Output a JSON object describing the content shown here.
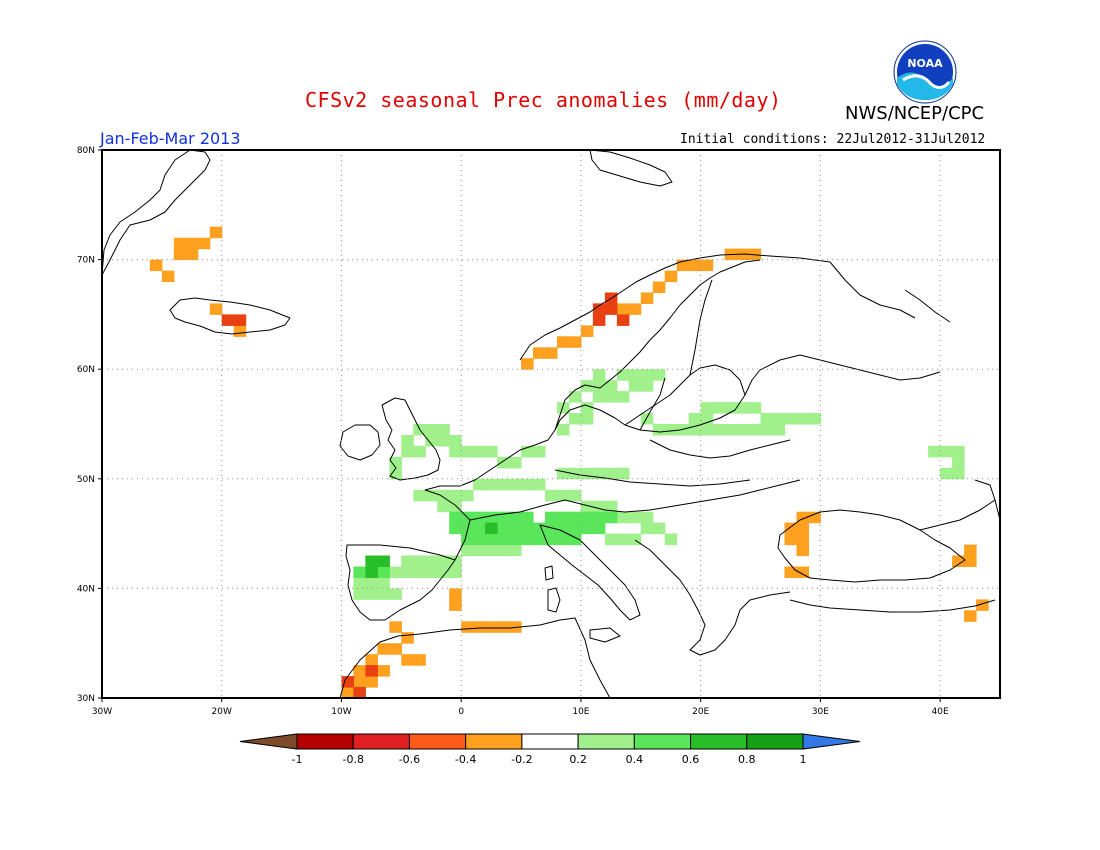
{
  "header": {
    "title": "CFSv2 seasonal Prec anomalies (mm/day)",
    "agency": "NWS/NCEP/CPC",
    "period": "Jan-Feb-Mar 2013",
    "initial_conditions": "Initial conditions: 22Jul2012-31Jul2012",
    "logo_text": "NOAA"
  },
  "map": {
    "lon_range": [
      -30,
      45
    ],
    "lat_range": [
      30,
      80
    ],
    "lon_ticks": [
      "30W",
      "20W",
      "10W",
      "0",
      "10E",
      "20E",
      "30E",
      "40E"
    ],
    "lat_ticks": [
      "30N",
      "40N",
      "50N",
      "60N",
      "70N",
      "80N"
    ],
    "grid": "dotted",
    "land_outline_color": "#000000"
  },
  "anomalies": {
    "units": "mm/day",
    "cell_size_deg": 1,
    "dry_moderate": [
      [
        -24,
        70
      ],
      [
        -23,
        70
      ],
      [
        -24,
        71
      ],
      [
        -23,
        71
      ],
      [
        -22,
        71
      ],
      [
        -21,
        72
      ],
      [
        -26,
        69
      ],
      [
        -25,
        68
      ],
      [
        -19,
        63
      ],
      [
        -21,
        65
      ],
      [
        -10,
        30
      ],
      [
        -9,
        31
      ],
      [
        -8,
        31
      ],
      [
        -7,
        32
      ],
      [
        -8,
        33
      ],
      [
        -7,
        34
      ],
      [
        -6,
        34
      ],
      [
        -5,
        33
      ],
      [
        -4,
        33
      ],
      [
        -5,
        35
      ],
      [
        -6,
        36
      ],
      [
        -9,
        32
      ],
      [
        1,
        36
      ],
      [
        0,
        36
      ],
      [
        2,
        36
      ],
      [
        3,
        36
      ],
      [
        4,
        36
      ],
      [
        -1,
        38
      ],
      [
        -1,
        39
      ],
      [
        29,
        46
      ],
      [
        28,
        46
      ],
      [
        28,
        45
      ],
      [
        27,
        44
      ],
      [
        27,
        45
      ],
      [
        28,
        44
      ],
      [
        28,
        43
      ],
      [
        27,
        41
      ],
      [
        28,
        41
      ],
      [
        41,
        42
      ],
      [
        42,
        42
      ],
      [
        42,
        43
      ],
      [
        42,
        37
      ],
      [
        43,
        38
      ],
      [
        5,
        60
      ],
      [
        6,
        61
      ],
      [
        7,
        61
      ],
      [
        8,
        62
      ],
      [
        9,
        62
      ],
      [
        10,
        63
      ],
      [
        13,
        65
      ],
      [
        14,
        65
      ],
      [
        15,
        66
      ],
      [
        16,
        67
      ],
      [
        17,
        68
      ],
      [
        18,
        69
      ],
      [
        19,
        69
      ],
      [
        20,
        69
      ],
      [
        22,
        70
      ],
      [
        23,
        70
      ],
      [
        24,
        70
      ]
    ],
    "dry_strong": [
      [
        -20,
        64
      ],
      [
        -19,
        64
      ],
      [
        -10,
        31
      ],
      [
        -9,
        30
      ],
      [
        -8,
        32
      ],
      [
        11,
        64
      ],
      [
        12,
        65
      ],
      [
        13,
        64
      ],
      [
        12,
        66
      ],
      [
        11,
        65
      ]
    ],
    "wet_weak": [
      [
        -6,
        51
      ],
      [
        -5,
        52
      ],
      [
        -4,
        52
      ],
      [
        -3,
        53
      ],
      [
        -2,
        53
      ],
      [
        -1,
        53
      ],
      [
        -2,
        54
      ],
      [
        -3,
        54
      ],
      [
        -4,
        54
      ],
      [
        -1,
        52
      ],
      [
        0,
        52
      ],
      [
        1,
        52
      ],
      [
        2,
        52
      ],
      [
        -5,
        53
      ],
      [
        -6,
        50
      ],
      [
        -4,
        48
      ],
      [
        -3,
        48
      ],
      [
        -2,
        48
      ],
      [
        -1,
        48
      ],
      [
        0,
        48
      ],
      [
        1,
        49
      ],
      [
        2,
        49
      ],
      [
        3,
        49
      ],
      [
        4,
        49
      ],
      [
        5,
        49
      ],
      [
        6,
        49
      ],
      [
        7,
        48
      ],
      [
        8,
        48
      ],
      [
        9,
        48
      ],
      [
        -2,
        47
      ],
      [
        -1,
        47
      ],
      [
        10,
        47
      ],
      [
        11,
        47
      ],
      [
        12,
        47
      ],
      [
        13,
        46
      ],
      [
        14,
        46
      ],
      [
        15,
        46
      ],
      [
        15,
        45
      ],
      [
        16,
        45
      ],
      [
        17,
        44
      ],
      [
        12,
        44
      ],
      [
        13,
        44
      ],
      [
        14,
        44
      ],
      [
        -8,
        42
      ],
      [
        -7,
        42
      ],
      [
        -6,
        41
      ],
      [
        -5,
        41
      ],
      [
        -4,
        41
      ],
      [
        -3,
        41
      ],
      [
        -2,
        41
      ],
      [
        -1,
        41
      ],
      [
        -9,
        40
      ],
      [
        -8,
        40
      ],
      [
        -7,
        40
      ],
      [
        -6,
        39
      ],
      [
        -7,
        39
      ],
      [
        -8,
        39
      ],
      [
        -9,
        39
      ],
      [
        -5,
        42
      ],
      [
        -4,
        42
      ],
      [
        -3,
        42
      ],
      [
        -2,
        42
      ],
      [
        -1,
        42
      ],
      [
        0,
        43
      ],
      [
        1,
        43
      ],
      [
        2,
        43
      ],
      [
        3,
        43
      ],
      [
        4,
        43
      ],
      [
        8,
        54
      ],
      [
        9,
        55
      ],
      [
        10,
        55
      ],
      [
        8,
        56
      ],
      [
        9,
        57
      ],
      [
        10,
        56
      ],
      [
        11,
        57
      ],
      [
        12,
        57
      ],
      [
        13,
        57
      ],
      [
        14,
        58
      ],
      [
        15,
        58
      ],
      [
        15,
        59
      ],
      [
        14,
        59
      ],
      [
        13,
        59
      ],
      [
        16,
        59
      ],
      [
        10,
        58
      ],
      [
        11,
        58
      ],
      [
        11,
        59
      ],
      [
        12,
        58
      ],
      [
        15,
        55
      ],
      [
        16,
        54
      ],
      [
        17,
        54
      ],
      [
        18,
        54
      ],
      [
        19,
        54
      ],
      [
        20,
        54
      ],
      [
        21,
        54
      ],
      [
        22,
        54
      ],
      [
        23,
        54
      ],
      [
        24,
        54
      ],
      [
        25,
        54
      ],
      [
        26,
        54
      ],
      [
        26,
        55
      ],
      [
        25,
        55
      ],
      [
        24,
        56
      ],
      [
        23,
        56
      ],
      [
        22,
        56
      ],
      [
        21,
        56
      ],
      [
        20,
        56
      ],
      [
        27,
        55
      ],
      [
        28,
        55
      ],
      [
        29,
        55
      ],
      [
        20,
        55
      ],
      [
        19,
        55
      ],
      [
        8,
        50
      ],
      [
        9,
        50
      ],
      [
        10,
        50
      ],
      [
        11,
        50
      ],
      [
        12,
        50
      ],
      [
        13,
        50
      ],
      [
        3,
        51
      ],
      [
        4,
        51
      ],
      [
        5,
        52
      ],
      [
        6,
        52
      ],
      [
        39,
        52
      ],
      [
        40,
        52
      ],
      [
        41,
        52
      ],
      [
        41,
        51
      ],
      [
        41,
        50
      ],
      [
        40,
        50
      ]
    ],
    "wet_moderate": [
      [
        -1,
        46
      ],
      [
        0,
        46
      ],
      [
        1,
        46
      ],
      [
        2,
        46
      ],
      [
        3,
        46
      ],
      [
        4,
        46
      ],
      [
        5,
        46
      ],
      [
        6,
        45
      ],
      [
        7,
        45
      ],
      [
        8,
        45
      ],
      [
        9,
        45
      ],
      [
        10,
        45
      ],
      [
        11,
        45
      ],
      [
        0,
        45
      ],
      [
        1,
        45
      ],
      [
        2,
        45
      ],
      [
        3,
        45
      ],
      [
        4,
        45
      ],
      [
        5,
        45
      ],
      [
        0,
        44
      ],
      [
        1,
        44
      ],
      [
        2,
        44
      ],
      [
        3,
        44
      ],
      [
        4,
        44
      ],
      [
        5,
        44
      ],
      [
        6,
        44
      ],
      [
        7,
        44
      ],
      [
        8,
        44
      ],
      [
        9,
        44
      ],
      [
        -1,
        45
      ],
      [
        7,
        46
      ],
      [
        8,
        46
      ],
      [
        9,
        46
      ],
      [
        10,
        46
      ],
      [
        11,
        46
      ],
      [
        12,
        46
      ],
      [
        -8,
        41
      ],
      [
        -7,
        41
      ],
      [
        -9,
        41
      ]
    ],
    "wet_strong": [
      [
        2,
        45
      ],
      [
        -8,
        42
      ],
      [
        -7,
        42
      ],
      [
        -8,
        41
      ]
    ]
  },
  "colorbar": {
    "labels": [
      "-1",
      "-0.8",
      "-0.6",
      "-0.4",
      "-0.2",
      "0.2",
      "0.4",
      "0.6",
      "0.8",
      "1"
    ],
    "colors": [
      "#7f4a2a",
      "#b40000",
      "#e02020",
      "#ff5a1a",
      "#ffa01e",
      "#ffffff",
      "#a0f08c",
      "#5ae65a",
      "#28be28",
      "#14a014",
      "#3278e6"
    ]
  }
}
